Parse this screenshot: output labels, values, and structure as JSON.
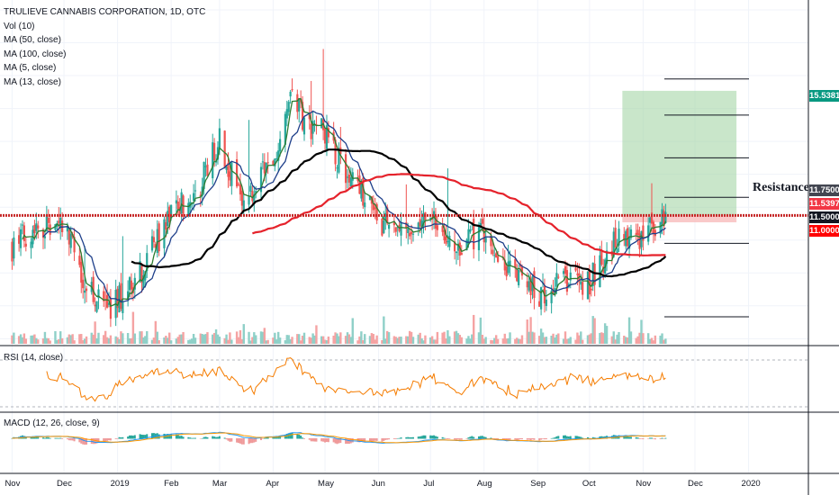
{
  "legend": {
    "title": "TRULIEVE CANNABIS CORPORATION, 1D, OTC",
    "vol": "Vol (10)",
    "ma50": "MA (50, close)",
    "ma100": "MA (100, close)",
    "ma5": "MA (5, close)",
    "ma13": "MA (13, close)"
  },
  "rsi_label": "RSI (14, close)",
  "macd_label": "MACD (12, 26, close, 9)",
  "resistance_label": "Resistance",
  "price_tags": [
    {
      "value": "15.5381",
      "color": "#089981"
    },
    {
      "value": "11.7500",
      "color": "#434651"
    },
    {
      "value": "11.5397",
      "color": "#f23645"
    },
    {
      "value": "11.5000",
      "color": "#131722"
    },
    {
      "value": "11.0000",
      "color": "#ff0000"
    }
  ],
  "colors": {
    "up": "#26a69a",
    "down": "#ef5350",
    "vol_up": "#8fd0c8",
    "vol_down": "#f5a3a3",
    "ma5": "#2e7d32",
    "ma13": "#1e3f8a",
    "ma50": "#000000",
    "ma100": "#e5222b",
    "resistance": "#c62828",
    "rsi": "#f57c00",
    "macd": "#2196f3",
    "signal": "#ff9800",
    "target_zone": "#a5d6a7",
    "stop_zone": "#f8bbbb"
  },
  "chart_data": {
    "type": "candlestick",
    "title": "TRULIEVE CANNABIS CORPORATION, 1D, OTC",
    "x_ticks": [
      "Nov",
      "Dec",
      "2019",
      "Feb",
      "Mar",
      "Apr",
      "May",
      "Jun",
      "Jul",
      "Aug",
      "Sep",
      "Oct",
      "Nov",
      "Dec",
      "2020"
    ],
    "price_anchors": [
      {
        "date": "2018-11-01",
        "close": 10.8
      },
      {
        "date": "2018-11-15",
        "close": 11.5
      },
      {
        "date": "2018-12-01",
        "close": 11.3
      },
      {
        "date": "2018-12-15",
        "close": 9.6
      },
      {
        "date": "2018-12-27",
        "close": 8.9
      },
      {
        "date": "2019-01-15",
        "close": 10.1
      },
      {
        "date": "2019-02-01",
        "close": 11.8
      },
      {
        "date": "2019-02-15",
        "close": 12.4
      },
      {
        "date": "2019-03-01",
        "close": 14.0
      },
      {
        "date": "2019-03-15",
        "close": 12.2
      },
      {
        "date": "2019-04-01",
        "close": 13.4
      },
      {
        "date": "2019-04-10",
        "close": 15.6
      },
      {
        "date": "2019-04-20",
        "close": 14.6
      },
      {
        "date": "2019-05-01",
        "close": 14.2
      },
      {
        "date": "2019-05-15",
        "close": 12.9
      },
      {
        "date": "2019-06-01",
        "close": 11.6
      },
      {
        "date": "2019-06-15",
        "close": 11.3
      },
      {
        "date": "2019-07-01",
        "close": 11.6
      },
      {
        "date": "2019-07-15",
        "close": 10.9
      },
      {
        "date": "2019-08-01",
        "close": 11.2
      },
      {
        "date": "2019-08-15",
        "close": 10.2
      },
      {
        "date": "2019-09-01",
        "close": 9.3
      },
      {
        "date": "2019-09-15",
        "close": 9.8
      },
      {
        "date": "2019-10-01",
        "close": 9.7
      },
      {
        "date": "2019-10-15",
        "close": 10.9
      },
      {
        "date": "2019-11-01",
        "close": 11.2
      },
      {
        "date": "2019-11-08",
        "close": 11.4
      },
      {
        "date": "2019-11-12",
        "close": 11.6
      },
      {
        "date": "2019-11-14",
        "close": 11.5
      }
    ],
    "series": [
      {
        "name": "MA (5, close)"
      },
      {
        "name": "MA (13, close)"
      },
      {
        "name": "MA (50, close)"
      },
      {
        "name": "MA (100, close)"
      }
    ],
    "levels": [
      {
        "name": "Resistance",
        "value": 11.75
      },
      {
        "value": 15.5381
      },
      {
        "value": 11.5397
      },
      {
        "value": 11.5
      },
      {
        "value": 11.0
      }
    ],
    "target_zone": [
      11.75,
      15.5381
    ],
    "stop_zone": [
      11.5397,
      11.75
    ],
    "rsi_period": 14,
    "macd_params": [
      12,
      26,
      9
    ]
  }
}
